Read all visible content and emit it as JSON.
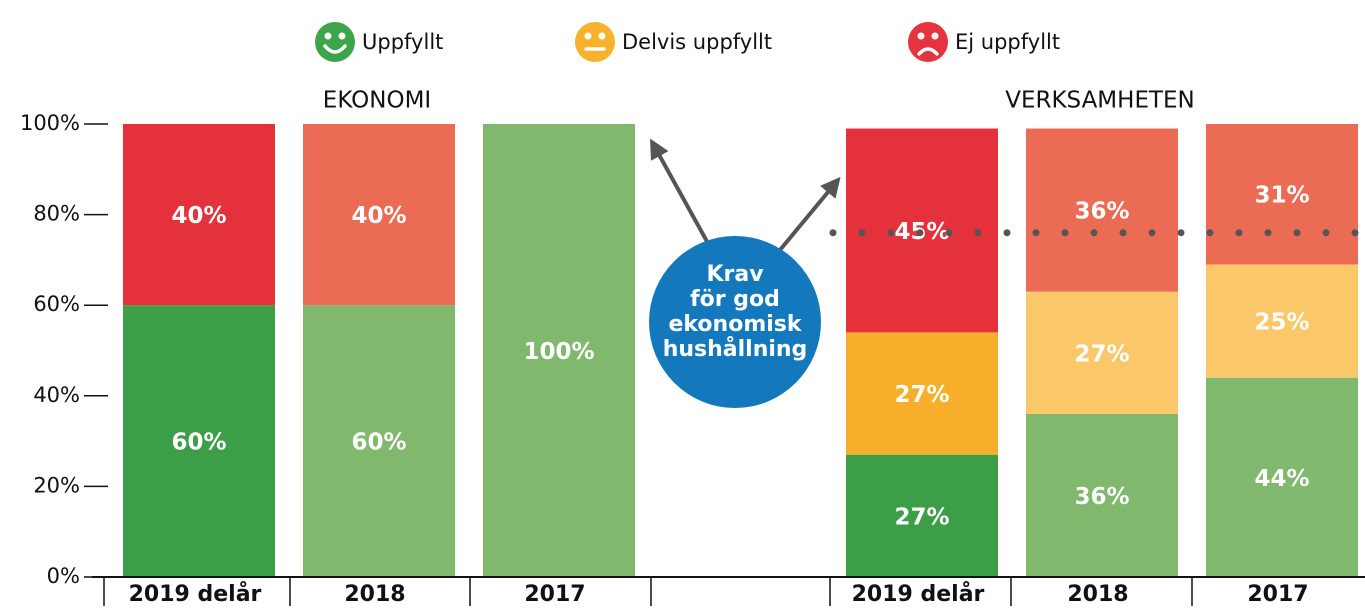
{
  "chart_data": {
    "type": "stacked_bar",
    "groups": [
      {
        "title": "EKONOMI",
        "categories": [
          "2019 delår",
          "2018",
          "2017"
        ]
      },
      {
        "title": "VERKSAMHETEN",
        "categories": [
          "2019 delår",
          "2018",
          "2017"
        ]
      }
    ],
    "series": [
      {
        "name": "Uppfyllt",
        "color": "#3ca54a",
        "colors": [
          "#3d9e48",
          "#80b96e",
          "#80b96e",
          "#3d9e48",
          "#80b96e",
          "#80b96e"
        ],
        "values": [
          60,
          60,
          100,
          27,
          36,
          44
        ],
        "value_labels": [
          "60%",
          "60%",
          "100%",
          "27%",
          "36%",
          "44%"
        ]
      },
      {
        "name": "Delvis uppfyllt",
        "color": "#f8b12a",
        "colors": [
          "#f7ae2a",
          "#fac769",
          "#fac769",
          "#f7ae2a",
          "#fac769",
          "#fac769"
        ],
        "values": [
          null,
          null,
          null,
          27,
          27,
          25
        ],
        "value_labels": [
          null,
          null,
          null,
          "27%",
          "27%",
          "25%"
        ]
      },
      {
        "name": "Ej uppfyllt",
        "color": "#e5333f",
        "colors": [
          "#e4313c",
          "#ec6b55",
          "#ec6b55",
          "#e4313c",
          "#ec6b55",
          "#ec6b55"
        ],
        "values": [
          40,
          40,
          null,
          45,
          36,
          31
        ],
        "value_labels": [
          "40%",
          "40%",
          null,
          "45%",
          "36%",
          "31%"
        ]
      }
    ],
    "reference_line": 76,
    "annotation": [
      "Krav",
      "för god",
      "ekonomisk",
      "hushållning"
    ],
    "ylim": [
      0,
      100
    ],
    "yticks": [
      {
        "value": 0,
        "label": "0%"
      },
      {
        "value": 20,
        "label": "20%"
      },
      {
        "value": 40,
        "label": "40%"
      },
      {
        "value": 60,
        "label": "60%"
      },
      {
        "value": 80,
        "label": "80%"
      },
      {
        "value": 100,
        "label": "100%"
      }
    ]
  }
}
